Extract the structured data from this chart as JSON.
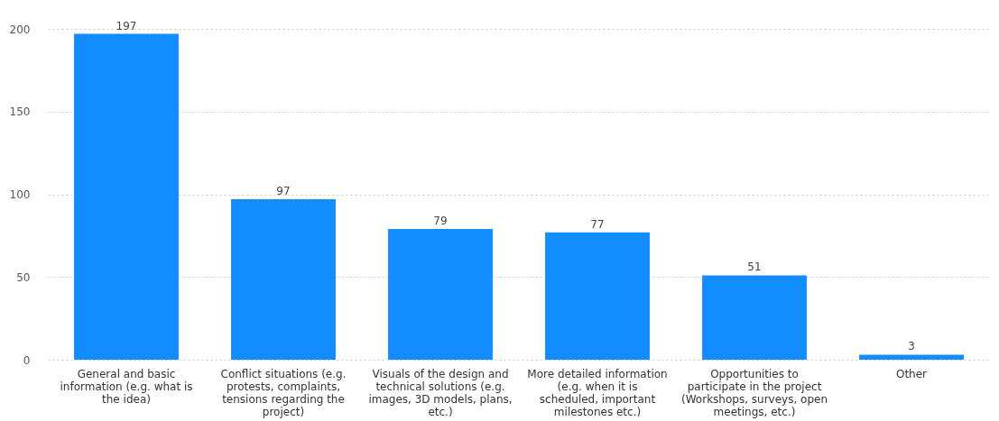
{
  "chart_data": {
    "type": "bar",
    "categories": [
      "General and basic information (e.g. what is the idea)",
      "Conflict situations (e.g. protests, complaints, tensions regarding the project)",
      "Visuals of the design and technical solutions (e.g. images, 3D models, plans, etc.)",
      "More detailed information (e.g. when it is scheduled, important milestones etc.)",
      "Opportunities to participate in the project (Workshops, surveys, open meetings, etc.)",
      "Other"
    ],
    "values": [
      197,
      97,
      79,
      77,
      51,
      3
    ],
    "color": "#118dff",
    "ylim": [
      0,
      200
    ],
    "yticks": [
      0,
      50,
      100,
      150,
      200
    ],
    "grid": "y",
    "data_labels": true
  }
}
